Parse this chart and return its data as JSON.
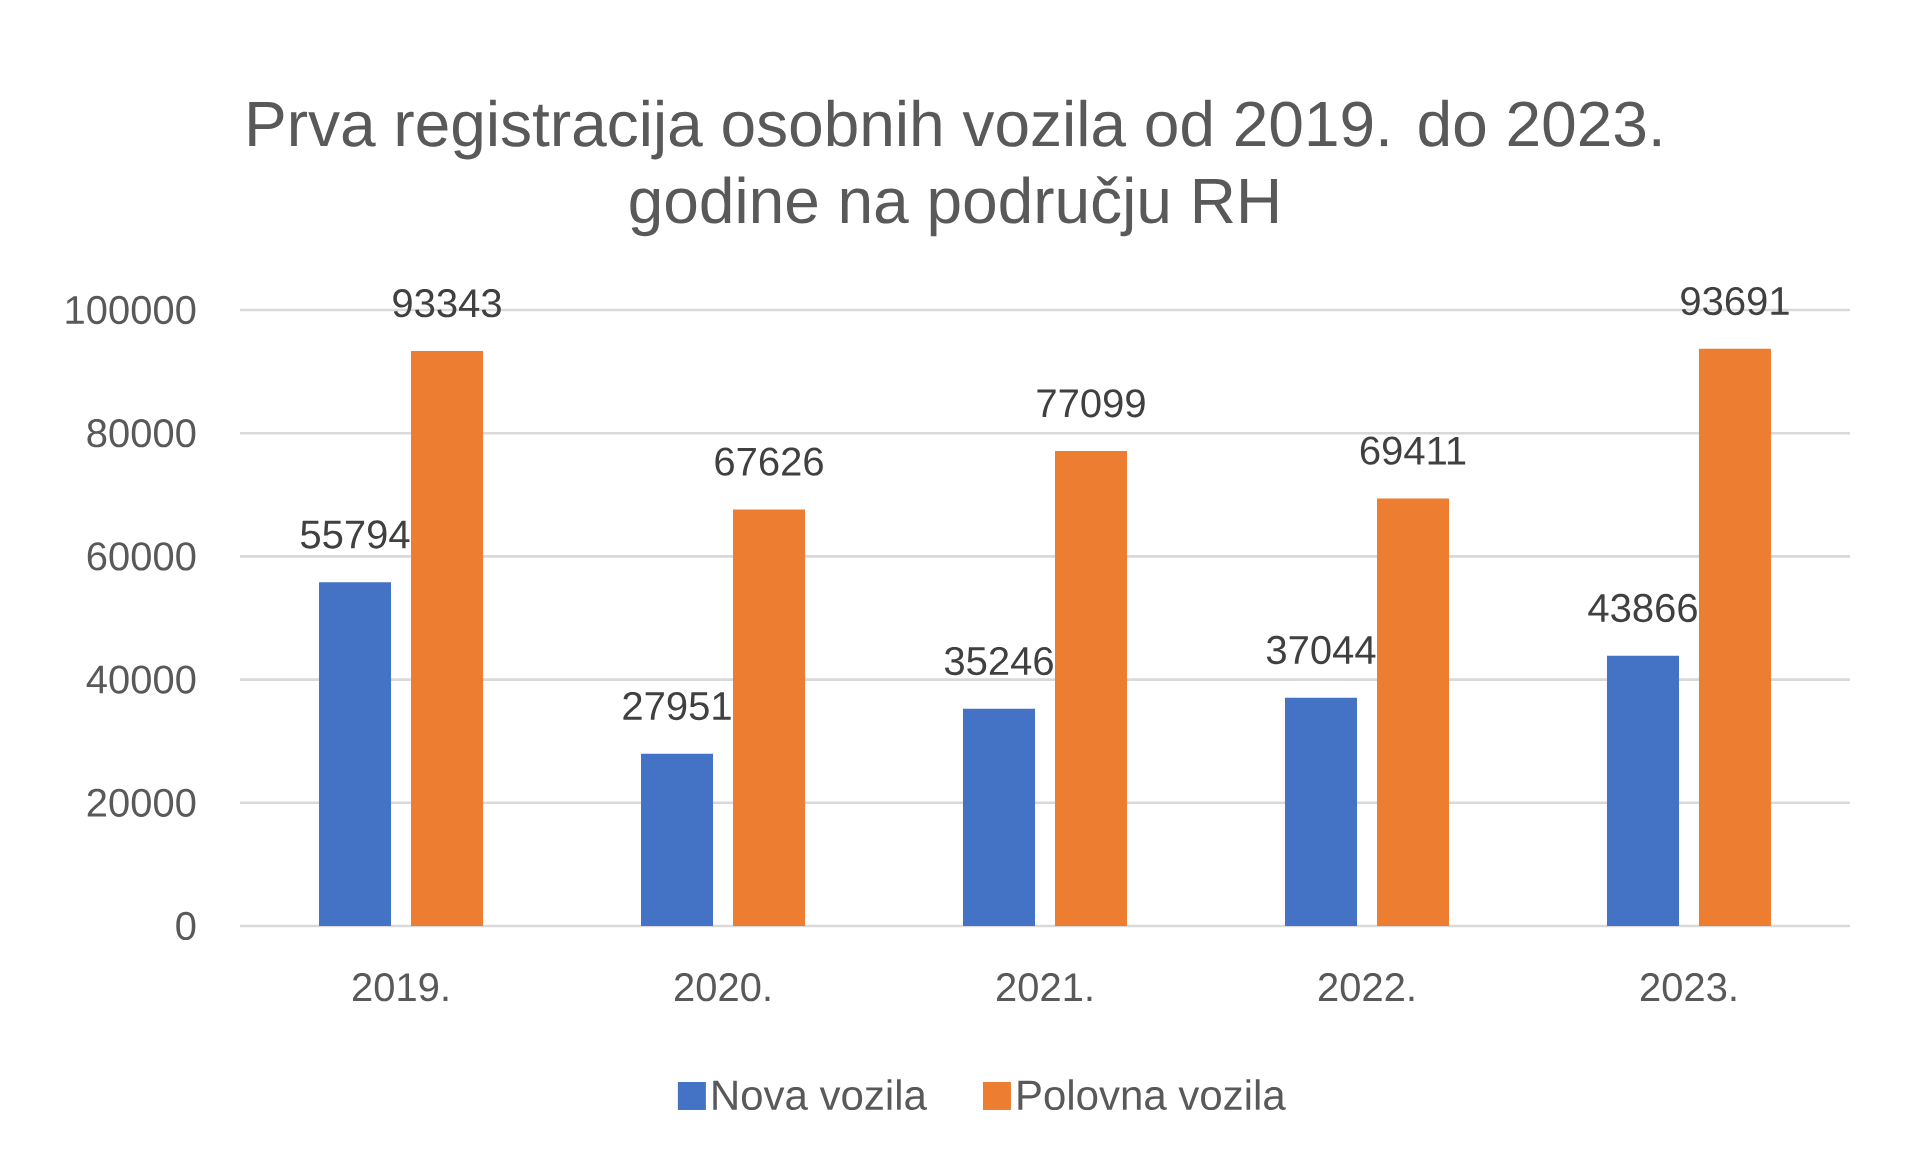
{
  "chart_data": {
    "type": "bar",
    "title": "Prva registracija osobnih vozila od 2019. do 2023. godine na području RH",
    "categories": [
      "2019.",
      "2020.",
      "2021.",
      "2022.",
      "2023."
    ],
    "series": [
      {
        "name": "Nova vozila",
        "color": "#4472c4",
        "values": [
          55794,
          27951,
          35246,
          37044,
          43866
        ]
      },
      {
        "name": "Polovna vozila",
        "color": "#ed7d31",
        "values": [
          93343,
          67626,
          77099,
          69411,
          93691
        ]
      }
    ],
    "ylim": [
      0,
      100000
    ],
    "yticks": [
      0,
      20000,
      40000,
      60000,
      80000,
      100000
    ],
    "grid": "y",
    "legend": "bottom",
    "data_labels": true
  }
}
